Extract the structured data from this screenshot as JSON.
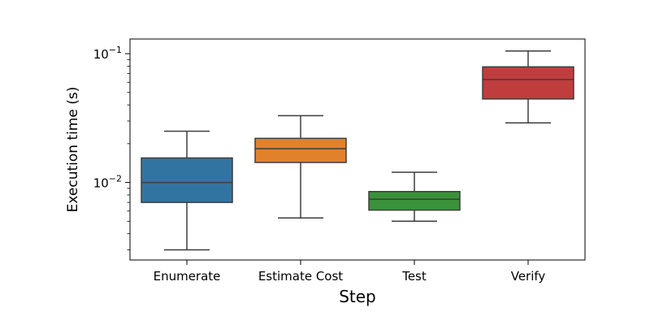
{
  "chart_data": {
    "type": "box",
    "xlabel": "Step",
    "ylabel": "Execution time (s)",
    "yscale": "log",
    "ylim": [
      0.0025,
      0.13
    ],
    "grid": false,
    "legend": "none",
    "y_ticks": [
      {
        "value": 0.01,
        "base": "10",
        "exp": "−2"
      },
      {
        "value": 0.1,
        "base": "10",
        "exp": "−1"
      }
    ],
    "categories": [
      "Enumerate",
      "Estimate Cost",
      "Test",
      "Verify"
    ],
    "colors": [
      "#3274a1",
      "#e1812c",
      "#3a923a",
      "#c03d3e"
    ],
    "edge_color": "#3d3d3d",
    "boxes": [
      {
        "label": "Enumerate",
        "whisker_low": 0.003,
        "q1": 0.007,
        "median": 0.01,
        "q3": 0.0155,
        "whisker_high": 0.025
      },
      {
        "label": "Estimate Cost",
        "whisker_low": 0.0053,
        "q1": 0.0143,
        "median": 0.0183,
        "q3": 0.022,
        "whisker_high": 0.033
      },
      {
        "label": "Test",
        "whisker_low": 0.005,
        "q1": 0.0061,
        "median": 0.0074,
        "q3": 0.0085,
        "whisker_high": 0.012
      },
      {
        "label": "Verify",
        "whisker_low": 0.029,
        "q1": 0.0445,
        "median": 0.063,
        "q3": 0.079,
        "whisker_high": 0.105
      }
    ]
  }
}
